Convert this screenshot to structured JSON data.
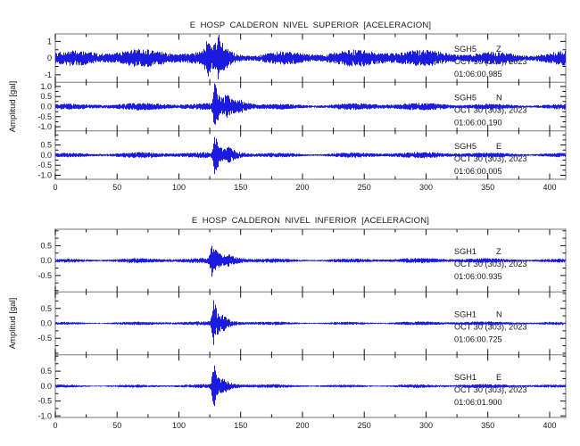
{
  "colors": {
    "background": "#ffffff",
    "trace": "#1c1ce0",
    "frame": "#9b9b9b",
    "tick": "#111111",
    "text": "#1a1a1a"
  },
  "chart_data": [
    {
      "type": "line",
      "title": "E HOSP CALDERON NIVEL SUPERIOR [ACELERACION]",
      "ylabel": "Amplitud [gal]",
      "x_axis": {
        "max": 413,
        "major_ticks": [
          0,
          50,
          100,
          150,
          200,
          250,
          300,
          350,
          400
        ],
        "tick_labels": [
          "0",
          "50",
          "100",
          "150",
          "200",
          "250",
          "300",
          "350",
          "400"
        ],
        "minor_step": 25
      },
      "traces": [
        {
          "station": "SGH5",
          "component": "Z",
          "date": "OCT 30 (303), 2023",
          "time": "01:06:00.985",
          "ylim": 1.45,
          "y_minor_step": 0.5,
          "yticks": [
            {
              "v": 1,
              "label": "1"
            },
            {
              "v": 0,
              "label": "0"
            },
            {
              "v": -1,
              "label": "-1"
            }
          ],
          "noise": 0.4,
          "bumps": [
            {
              "t": 124,
              "a": 0.72,
              "rise": 2.5,
              "decay": 3.5
            },
            {
              "t": 132,
              "a": 0.85,
              "rise": 2.0,
              "decay": 5.0
            }
          ],
          "seed": 11
        },
        {
          "station": "SGH5",
          "component": "N",
          "date": "OCT 30 (303), 2023",
          "time": "01:06:00.190",
          "ylim": 1.2,
          "y_minor_step": 0.25,
          "yticks": [
            {
              "v": 1.0,
              "label": "1.0"
            },
            {
              "v": 0.5,
              "label": "0.5"
            },
            {
              "v": 0.0,
              "label": "0.0"
            },
            {
              "v": -0.5,
              "label": "-0.5"
            },
            {
              "v": -1.0,
              "label": "-1.0"
            }
          ],
          "noise": 0.14,
          "bumps": [
            {
              "t": 129,
              "a": 1.05,
              "rise": 1.2,
              "decay": 4.0
            },
            {
              "t": 139,
              "a": 0.42,
              "rise": 2.0,
              "decay": 6.0
            },
            {
              "t": 150,
              "a": 0.2,
              "rise": 3.0,
              "decay": 8.0
            }
          ],
          "seed": 22
        },
        {
          "station": "SGH5",
          "component": "E",
          "date": "OCT 30 (303), 2023",
          "time": "01:06:00.005",
          "ylim": 1.2,
          "y_minor_step": 0.25,
          "yticks": [
            {
              "v": 0.5,
              "label": "0.5"
            },
            {
              "v": 0.0,
              "label": "0.0"
            },
            {
              "v": -0.5,
              "label": "-0.5"
            },
            {
              "v": -1.0,
              "label": "-1.0"
            }
          ],
          "noise": 0.115,
          "bumps": [
            {
              "t": 129,
              "a": 0.8,
              "rise": 1.2,
              "decay": 4.0
            },
            {
              "t": 140,
              "a": 0.28,
              "rise": 2.0,
              "decay": 7.0
            }
          ],
          "seed": 33
        }
      ]
    },
    {
      "type": "line",
      "title": "E HOSP CALDERON NIVEL INFERIOR [ACELERACION]",
      "ylabel": "Amplitud [gal]",
      "x_axis": {
        "max": 413,
        "major_ticks": [
          0,
          50,
          100,
          150,
          200,
          250,
          300,
          350,
          400
        ],
        "tick_labels": [
          "0",
          "50",
          "100",
          "150",
          "200",
          "250",
          "300",
          "350",
          "400"
        ],
        "minor_step": 25
      },
      "traces": [
        {
          "station": "SGH1",
          "component": "Z",
          "date": "OCT 30 (303), 2023",
          "time": "01:06:00.935",
          "ylim": 1.05,
          "y_minor_step": 0.25,
          "yticks": [
            {
              "v": 0.5,
              "label": "0.5"
            },
            {
              "v": 0.0,
              "label": "0.0"
            },
            {
              "v": -0.5,
              "label": "-0.5"
            }
          ],
          "noise": 0.068,
          "bumps": [
            {
              "t": 127,
              "a": 0.5,
              "rise": 1.5,
              "decay": 5.0
            },
            {
              "t": 141,
              "a": 0.1,
              "rise": 3.0,
              "decay": 8.0
            }
          ],
          "seed": 44
        },
        {
          "station": "SGH1",
          "component": "N",
          "date": "OCT 30 (303), 2023",
          "time": "01:06:00.725",
          "ylim": 1.05,
          "y_minor_step": 0.25,
          "yticks": [
            {
              "v": 0.5,
              "label": "0.5"
            },
            {
              "v": 0.0,
              "label": "0.0"
            },
            {
              "v": -0.5,
              "label": "-0.5"
            }
          ],
          "noise": 0.052,
          "bumps": [
            {
              "t": 128,
              "a": 0.74,
              "rise": 1.2,
              "decay": 3.5
            },
            {
              "t": 136,
              "a": 0.14,
              "rise": 2.0,
              "decay": 6.0
            }
          ],
          "seed": 55
        },
        {
          "station": "SGH1",
          "component": "E",
          "date": "OCT 30 (303), 2023",
          "time": "01:06:01.900",
          "ylim": 1.05,
          "y_minor_step": 0.25,
          "yticks": [
            {
              "v": 0.5,
              "label": "0.5"
            },
            {
              "v": 0.0,
              "label": "0.0"
            },
            {
              "v": -0.5,
              "label": "-0.5"
            },
            {
              "v": -1.0,
              "label": "-1.0"
            }
          ],
          "noise": 0.052,
          "bumps": [
            {
              "t": 128,
              "a": 0.7,
              "rise": 1.2,
              "decay": 3.5
            },
            {
              "t": 137,
              "a": 0.13,
              "rise": 2.0,
              "decay": 6.0
            }
          ],
          "seed": 66
        }
      ]
    }
  ]
}
